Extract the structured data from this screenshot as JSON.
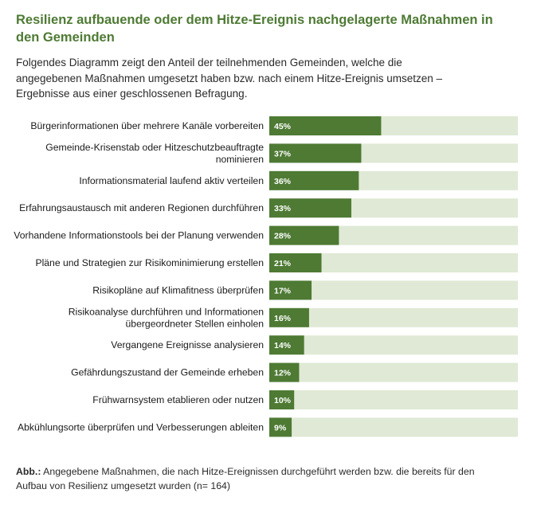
{
  "header": {
    "title": "Resilienz aufbauende oder dem Hitze-Ereignis nachgelagerte Maßnahmen in den Gemeinden",
    "subtitle": "Folgendes Diagramm zeigt den Anteil der teilnehmenden Gemeinden, welche die angegebenen Maßnahmen umgesetzt haben bzw. nach einem Hitze-Ereignis umsetzen – Ergebnisse aus einer geschlossenen Befragung."
  },
  "caption": {
    "prefix": "Abb.:",
    "text": " Angegebene Maßnahmen, die nach Hitze-Ereignissen durchgeführt werden bzw. die bereits für den Aufbau von Resilienz umgesetzt wurden (n= 164)"
  },
  "colors": {
    "title": "#4e7a34",
    "bar": "#4e7a34",
    "track": "#dfe9d5"
  },
  "chart_data": {
    "type": "bar",
    "orientation": "horizontal",
    "xlim": [
      0,
      100
    ],
    "unit": "%",
    "categories": [
      [
        "Bürgerinformationen über mehrere Kanäle vorbereiten"
      ],
      [
        "Gemeinde-Krisenstab oder Hitzeschutzbeauftragte",
        "nominieren"
      ],
      [
        "Informationsmaterial laufend aktiv verteilen"
      ],
      [
        "Erfahrungsaustausch mit anderen Regionen durchführen"
      ],
      [
        "Vorhandene Informationstools bei der Planung verwenden"
      ],
      [
        "Pläne und Strategien zur Risikominimierung erstellen"
      ],
      [
        "Risikopläne auf Klimafitness überprüfen"
      ],
      [
        "Risikoanalyse durchführen und Informationen",
        "übergeordneter Stellen einholen"
      ],
      [
        "Vergangene Ereignisse analysieren"
      ],
      [
        "Gefährdungszustand der Gemeinde erheben"
      ],
      [
        "Frühwarnsystem etablieren oder nutzen"
      ],
      [
        "Abkühlungsorte überprüfen und Verbesserungen ableiten"
      ]
    ],
    "values": [
      45,
      37,
      36,
      33,
      28,
      21,
      17,
      16,
      14,
      12,
      10,
      9
    ],
    "value_labels": [
      "45%",
      "37%",
      "36%",
      "33%",
      "28%",
      "21%",
      "17%",
      "16%",
      "14%",
      "12%",
      "10%",
      "9%"
    ]
  }
}
